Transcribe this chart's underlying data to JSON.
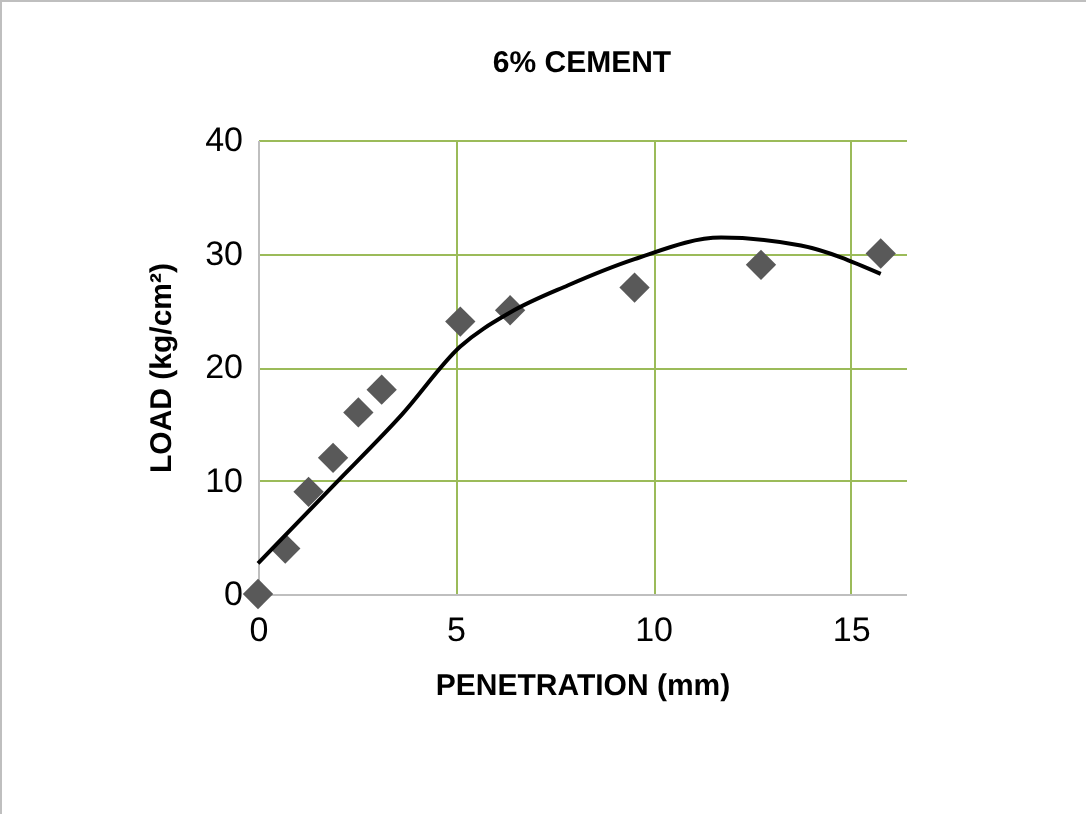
{
  "chart_data": {
    "type": "scatter",
    "title": "6% CEMENT",
    "xlabel": "PENETRATION (mm)",
    "ylabel": "LOAD (kg/cm²)",
    "xlim": [
      0,
      16.4
    ],
    "xticks": [
      0,
      5,
      10,
      15
    ],
    "ylim": [
      0,
      40
    ],
    "yticks": [
      0,
      10,
      20,
      30,
      40
    ],
    "grid": true,
    "series": [
      {
        "marker": "diamond",
        "color": "#595959",
        "x": [
          0,
          0.69,
          1.28,
          1.9,
          2.54,
          3.13,
          5.12,
          6.38,
          9.53,
          12.73,
          15.76
        ],
        "values": [
          0,
          4,
          9,
          12,
          16,
          18,
          24,
          25,
          27,
          29,
          30
        ]
      },
      {
        "type": "line",
        "marker": "none",
        "color": "#000000",
        "x": [
          0,
          1.95,
          3.64,
          5.12,
          6.38,
          7.85,
          9.53,
          11.72,
          13.74,
          15.76
        ],
        "values": [
          2.7,
          9.7,
          15.8,
          21.8,
          24.8,
          27.2,
          29.5,
          31.4,
          30.7,
          28.2
        ]
      }
    ]
  }
}
